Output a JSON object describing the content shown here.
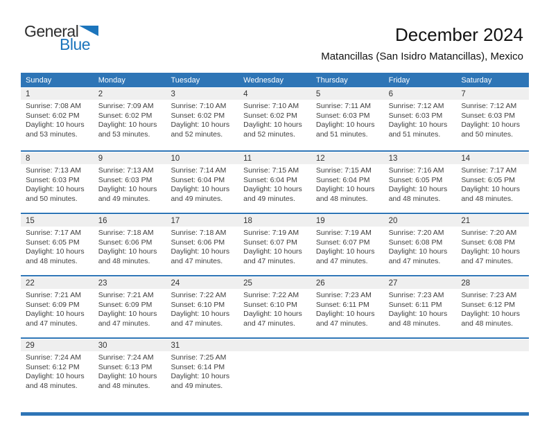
{
  "logo": {
    "general": "General",
    "blue": "Blue"
  },
  "header": {
    "title": "December 2024",
    "subtitle": "Matancillas (San Isidro Matancillas), Mexico"
  },
  "colors": {
    "accent": "#2E75B6",
    "day_band_bg": "#EFEFEF",
    "body_text": "#3E3E3E",
    "logo_blue": "#1C75BC"
  },
  "calendar": {
    "day_headers": [
      "Sunday",
      "Monday",
      "Tuesday",
      "Wednesday",
      "Thursday",
      "Friday",
      "Saturday"
    ],
    "label_prefixes": {
      "sunrise": "Sunrise: ",
      "sunset": "Sunset: ",
      "daylight": "Daylight: "
    },
    "weeks": [
      [
        {
          "date": "1",
          "sunrise": "7:08 AM",
          "sunset": "6:02 PM",
          "daylight": "10 hours and 53 minutes."
        },
        {
          "date": "2",
          "sunrise": "7:09 AM",
          "sunset": "6:02 PM",
          "daylight": "10 hours and 53 minutes."
        },
        {
          "date": "3",
          "sunrise": "7:10 AM",
          "sunset": "6:02 PM",
          "daylight": "10 hours and 52 minutes."
        },
        {
          "date": "4",
          "sunrise": "7:10 AM",
          "sunset": "6:02 PM",
          "daylight": "10 hours and 52 minutes."
        },
        {
          "date": "5",
          "sunrise": "7:11 AM",
          "sunset": "6:03 PM",
          "daylight": "10 hours and 51 minutes."
        },
        {
          "date": "6",
          "sunrise": "7:12 AM",
          "sunset": "6:03 PM",
          "daylight": "10 hours and 51 minutes."
        },
        {
          "date": "7",
          "sunrise": "7:12 AM",
          "sunset": "6:03 PM",
          "daylight": "10 hours and 50 minutes."
        }
      ],
      [
        {
          "date": "8",
          "sunrise": "7:13 AM",
          "sunset": "6:03 PM",
          "daylight": "10 hours and 50 minutes."
        },
        {
          "date": "9",
          "sunrise": "7:13 AM",
          "sunset": "6:03 PM",
          "daylight": "10 hours and 49 minutes."
        },
        {
          "date": "10",
          "sunrise": "7:14 AM",
          "sunset": "6:04 PM",
          "daylight": "10 hours and 49 minutes."
        },
        {
          "date": "11",
          "sunrise": "7:15 AM",
          "sunset": "6:04 PM",
          "daylight": "10 hours and 49 minutes."
        },
        {
          "date": "12",
          "sunrise": "7:15 AM",
          "sunset": "6:04 PM",
          "daylight": "10 hours and 48 minutes."
        },
        {
          "date": "13",
          "sunrise": "7:16 AM",
          "sunset": "6:05 PM",
          "daylight": "10 hours and 48 minutes."
        },
        {
          "date": "14",
          "sunrise": "7:17 AM",
          "sunset": "6:05 PM",
          "daylight": "10 hours and 48 minutes."
        }
      ],
      [
        {
          "date": "15",
          "sunrise": "7:17 AM",
          "sunset": "6:05 PM",
          "daylight": "10 hours and 48 minutes."
        },
        {
          "date": "16",
          "sunrise": "7:18 AM",
          "sunset": "6:06 PM",
          "daylight": "10 hours and 48 minutes."
        },
        {
          "date": "17",
          "sunrise": "7:18 AM",
          "sunset": "6:06 PM",
          "daylight": "10 hours and 47 minutes."
        },
        {
          "date": "18",
          "sunrise": "7:19 AM",
          "sunset": "6:07 PM",
          "daylight": "10 hours and 47 minutes."
        },
        {
          "date": "19",
          "sunrise": "7:19 AM",
          "sunset": "6:07 PM",
          "daylight": "10 hours and 47 minutes."
        },
        {
          "date": "20",
          "sunrise": "7:20 AM",
          "sunset": "6:08 PM",
          "daylight": "10 hours and 47 minutes."
        },
        {
          "date": "21",
          "sunrise": "7:20 AM",
          "sunset": "6:08 PM",
          "daylight": "10 hours and 47 minutes."
        }
      ],
      [
        {
          "date": "22",
          "sunrise": "7:21 AM",
          "sunset": "6:09 PM",
          "daylight": "10 hours and 47 minutes."
        },
        {
          "date": "23",
          "sunrise": "7:21 AM",
          "sunset": "6:09 PM",
          "daylight": "10 hours and 47 minutes."
        },
        {
          "date": "24",
          "sunrise": "7:22 AM",
          "sunset": "6:10 PM",
          "daylight": "10 hours and 47 minutes."
        },
        {
          "date": "25",
          "sunrise": "7:22 AM",
          "sunset": "6:10 PM",
          "daylight": "10 hours and 47 minutes."
        },
        {
          "date": "26",
          "sunrise": "7:23 AM",
          "sunset": "6:11 PM",
          "daylight": "10 hours and 47 minutes."
        },
        {
          "date": "27",
          "sunrise": "7:23 AM",
          "sunset": "6:11 PM",
          "daylight": "10 hours and 48 minutes."
        },
        {
          "date": "28",
          "sunrise": "7:23 AM",
          "sunset": "6:12 PM",
          "daylight": "10 hours and 48 minutes."
        }
      ],
      [
        {
          "date": "29",
          "sunrise": "7:24 AM",
          "sunset": "6:12 PM",
          "daylight": "10 hours and 48 minutes."
        },
        {
          "date": "30",
          "sunrise": "7:24 AM",
          "sunset": "6:13 PM",
          "daylight": "10 hours and 48 minutes."
        },
        {
          "date": "31",
          "sunrise": "7:25 AM",
          "sunset": "6:14 PM",
          "daylight": "10 hours and 49 minutes."
        },
        null,
        null,
        null,
        null
      ]
    ]
  }
}
